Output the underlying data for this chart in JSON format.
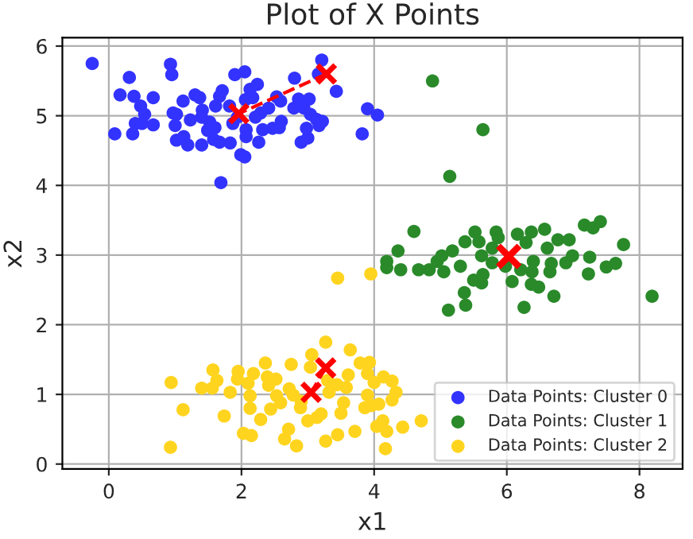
{
  "chart_data": {
    "type": "scatter",
    "title": "Plot of X Points",
    "xlabel": "x1",
    "ylabel": "x2",
    "xlim": [
      -0.7,
      8.65
    ],
    "ylim": [
      -0.07,
      6.12
    ],
    "xticks": [
      0,
      2,
      4,
      6,
      8
    ],
    "yticks": [
      0,
      1,
      2,
      3,
      4,
      5,
      6
    ],
    "grid": true,
    "legend": "bottom right",
    "marker": "circle",
    "series": [
      {
        "name": "Data Points: Cluster 0",
        "color": "#3333ff",
        "x": [
          -0.25,
          0.17,
          0.31,
          0.38,
          0.09,
          0.36,
          0.4,
          0.48,
          0.54,
          0.5,
          0.67,
          0.67,
          0.93,
          0.95,
          0.97,
          1.02,
          1.0,
          1.02,
          1.13,
          1.19,
          1.12,
          1.23,
          1.3,
          1.37,
          1.41,
          1.4,
          1.4,
          1.49,
          1.52,
          1.6,
          1.58,
          1.61,
          1.67,
          1.71,
          1.67,
          1.69,
          1.82,
          1.83,
          1.87,
          1.9,
          1.94,
          1.99,
          2.05,
          2.05,
          2.06,
          2.13,
          2.07,
          2.07,
          2.17,
          2.24,
          2.21,
          2.29,
          2.32,
          2.26,
          2.41,
          2.47,
          2.53,
          2.59,
          2.6,
          2.57,
          2.8,
          2.79,
          2.86,
          2.94,
          3.02,
          2.9,
          3.0,
          2.98,
          3.04,
          3.13,
          3.17,
          3.22,
          3.21,
          3.16,
          3.43,
          3.82,
          3.9,
          4.05
        ],
        "values": [
          5.75,
          5.3,
          5.55,
          5.28,
          4.74,
          4.74,
          4.89,
          5.14,
          5.02,
          4.89,
          5.26,
          4.87,
          5.74,
          5.59,
          5.04,
          5.02,
          4.86,
          4.65,
          4.7,
          4.58,
          5.21,
          4.94,
          5.3,
          5.26,
          5.08,
          4.98,
          4.58,
          4.79,
          4.91,
          4.83,
          4.66,
          5.14,
          5.28,
          5.36,
          4.62,
          4.04,
          5.14,
          4.61,
          4.89,
          5.59,
          4.98,
          4.44,
          4.41,
          5.63,
          5.23,
          5.38,
          4.7,
          4.8,
          5.26,
          5.45,
          4.98,
          5.04,
          4.8,
          4.62,
          5.11,
          4.82,
          5.27,
          5.21,
          4.92,
          4.83,
          5.54,
          5.11,
          5.24,
          5.11,
          5.24,
          4.62,
          4.68,
          4.82,
          5.02,
          4.95,
          4.86,
          4.92,
          5.8,
          5.6,
          5.35,
          4.74,
          5.1,
          5.01
        ]
      },
      {
        "name": "Data Points: Cluster 1",
        "color": "#2a8a2a",
        "x": [
          4.88,
          5.64,
          5.14,
          4.6,
          4.36,
          4.19,
          4.19,
          4.4,
          4.67,
          4.83,
          4.95,
          5.02,
          5.05,
          5.18,
          5.3,
          5.37,
          5.36,
          5.38,
          5.12,
          5.5,
          5.52,
          5.58,
          5.62,
          5.64,
          5.62,
          5.78,
          5.84,
          5.87,
          5.78,
          6.08,
          6.21,
          6.16,
          6.29,
          6.37,
          6.26,
          6.4,
          6.37,
          6.48,
          6.57,
          6.61,
          6.65,
          6.71,
          6.77,
          6.67,
          6.89,
          6.94,
          6.99,
          7.17,
          7.23,
          7.25,
          7.3,
          7.41,
          7.5,
          7.64,
          7.76,
          8.19,
          6.38,
          5.98
        ],
        "values": [
          5.5,
          4.8,
          4.13,
          3.34,
          3.06,
          2.91,
          2.82,
          2.79,
          2.79,
          2.79,
          2.91,
          2.99,
          2.76,
          3.06,
          2.84,
          3.19,
          2.46,
          2.28,
          2.21,
          2.64,
          3.33,
          3.19,
          2.99,
          2.72,
          2.6,
          3.1,
          3.33,
          3.25,
          2.89,
          2.62,
          2.79,
          3.3,
          3.18,
          3.33,
          2.25,
          2.91,
          2.58,
          2.54,
          3.37,
          3.1,
          2.76,
          2.41,
          3.22,
          2.88,
          2.89,
          3.22,
          2.99,
          3.43,
          2.73,
          2.97,
          3.39,
          3.48,
          2.83,
          2.88,
          3.15,
          2.41,
          2.76,
          2.84
        ]
      },
      {
        "name": "Data Points: Cluster 2",
        "color": "#ffd41f",
        "x": [
          3.45,
          3.95,
          0.94,
          0.93,
          1.12,
          1.4,
          1.57,
          1.63,
          1.56,
          1.74,
          1.83,
          1.95,
          1.94,
          2.03,
          2.15,
          2.1,
          2.18,
          2.13,
          2.13,
          2.29,
          2.36,
          2.39,
          2.41,
          2.44,
          2.52,
          2.53,
          2.59,
          2.65,
          2.71,
          2.75,
          2.72,
          2.78,
          2.83,
          2.89,
          2.9,
          3.0,
          3.04,
          3.06,
          3.14,
          3.2,
          3.27,
          3.27,
          3.3,
          3.32,
          3.44,
          3.45,
          3.5,
          3.54,
          3.58,
          3.64,
          3.61,
          3.71,
          3.79,
          3.86,
          3.9,
          3.93,
          3.9,
          3.96,
          4.0,
          4.04,
          4.07,
          4.13,
          4.14,
          4.17,
          4.19,
          4.27,
          4.27,
          4.33,
          4.43,
          4.71
        ],
        "values": [
          2.67,
          2.73,
          1.17,
          0.24,
          0.78,
          1.09,
          1.35,
          1.2,
          1.09,
          0.69,
          1.03,
          1.33,
          1.22,
          0.44,
          0.41,
          1.16,
          1.3,
          0.98,
          0.8,
          0.64,
          1.45,
          1.25,
          1.13,
          0.79,
          1.22,
          0.98,
          0.88,
          0.36,
          0.5,
          1.43,
          1.08,
          0.99,
          0.26,
          0.81,
          0.9,
          0.62,
          1.39,
          1.57,
          0.67,
          0.72,
          0.33,
          1.75,
          1.2,
          1.03,
          1.14,
          0.42,
          0.73,
          0.88,
          1.1,
          1.64,
          1.28,
          0.47,
          1.45,
          0.81,
          1.3,
          1.46,
          0.99,
          0.84,
          1.17,
          0.54,
          0.86,
          0.62,
          1.25,
          0.22,
          0.47,
          0.92,
          1.19,
          1.03,
          0.53,
          0.62
        ]
      },
      {
        "type": "line",
        "color": "#ff0000",
        "marker": "cross",
        "line_style": "dashed",
        "x": [
          3.28,
          1.96
        ],
        "values": [
          5.6,
          5.03
        ]
      },
      {
        "type": "line",
        "color": "#ff0000",
        "marker": "cross",
        "line_style": "dashed",
        "x": [
          3.27,
          3.05
        ],
        "values": [
          1.38,
          1.03
        ]
      },
      {
        "type": "scatter",
        "color": "#ff0000",
        "marker": "cross",
        "x": [
          6.03
        ],
        "values": [
          2.98
        ]
      }
    ]
  }
}
